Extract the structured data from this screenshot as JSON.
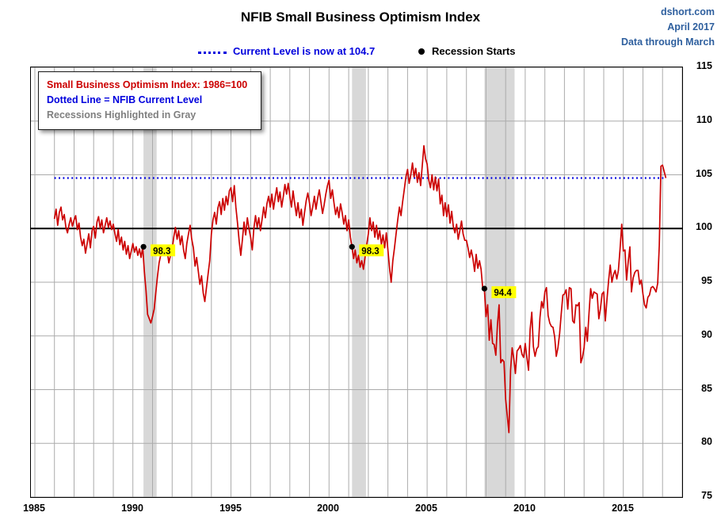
{
  "header": {
    "title": "NFIB Small Business Optimism Index",
    "source": "dshort.com",
    "date": "April 2017",
    "through": "Data through March"
  },
  "annotations": {
    "current_level_label": "Current Level is now at 104.7",
    "recession_starts_label": "Recession Starts"
  },
  "legend": {
    "line1": "Small Business Optimism Index: 1986=100",
    "line2": "Dotted Line = NFIB Current Level",
    "line3": "Recessions Highlighted in Gray"
  },
  "colors": {
    "series_red": "#cc0000",
    "current_level_blue": "#0000dd",
    "recession_band": "#d8d8d8",
    "grid": "#ababab",
    "baseline": "#000000",
    "marker": "#000000",
    "highlight_yellow": "#ffff00",
    "header_blue": "#2e5f9e",
    "legend_gray": "#7f7f7f"
  },
  "chart_data": {
    "type": "line",
    "title": "NFIB Small Business Optimism Index",
    "xlabel": "",
    "ylabel": "",
    "xlim": [
      1984.8,
      2018.0
    ],
    "ylim": [
      75,
      115
    ],
    "yticks": [
      75,
      80,
      85,
      90,
      95,
      100,
      105,
      110,
      115
    ],
    "xticks": [
      1985,
      1990,
      1995,
      2000,
      2005,
      2010,
      2015
    ],
    "gridline_interval_years": 1,
    "baseline": 100,
    "current_level": 104.7,
    "recessions": [
      [
        1990.54,
        1991.21
      ],
      [
        2001.17,
        2001.88
      ],
      [
        2007.92,
        2009.46
      ]
    ],
    "recession_starts": [
      {
        "x": 1990.54,
        "y": 98.3,
        "label": "98.3"
      },
      {
        "x": 2001.17,
        "y": 98.3,
        "label": "98.3"
      },
      {
        "x": 2007.92,
        "y": 94.4,
        "label": "94.4"
      }
    ],
    "x_start": 1986.0,
    "points_per_year": 12,
    "series": [
      {
        "name": "Small Business Optimism Index (1986=100), monthly, Jan 1986 - Mar 2017 (values estimated from chart)",
        "monthly_values": [
          100.9,
          101.8,
          100.3,
          101.5,
          102.0,
          100.8,
          101.3,
          100.1,
          99.6,
          100.4,
          101.0,
          100.2,
          100.8,
          101.2,
          99.9,
          100.5,
          99.2,
          98.4,
          99.0,
          97.7,
          98.6,
          99.5,
          98.2,
          99.8,
          100.2,
          99.1,
          100.6,
          101.1,
          100.0,
          100.8,
          99.6,
          100.3,
          101.0,
          100.1,
          100.7,
          99.9,
          100.4,
          99.5,
          98.8,
          99.9,
          98.5,
          99.2,
          98.0,
          98.8,
          97.6,
          98.4,
          97.2,
          97.9,
          98.6,
          97.8,
          98.3,
          97.5,
          98.1,
          97.3,
          98.3,
          96.0,
          94.2,
          92.0,
          91.6,
          91.2,
          91.8,
          92.5,
          94.0,
          95.5,
          96.8,
          97.5,
          98.2,
          97.6,
          98.4,
          97.9,
          96.8,
          97.5,
          98.0,
          99.2,
          100.1,
          99.0,
          99.8,
          98.5,
          99.3,
          98.0,
          97.2,
          98.6,
          99.5,
          100.3,
          99.0,
          98.2,
          96.5,
          97.3,
          96.0,
          94.8,
          95.6,
          94.0,
          93.2,
          94.5,
          95.8,
          97.0,
          99.5,
          100.8,
          101.5,
          100.4,
          101.9,
          102.5,
          101.3,
          102.8,
          101.7,
          103.0,
          102.2,
          103.5,
          103.8,
          102.5,
          104.0,
          102.0,
          100.5,
          98.8,
          97.5,
          99.0,
          100.6,
          99.4,
          101.0,
          100.0,
          99.2,
          98.0,
          100.0,
          101.2,
          100.1,
          101.0,
          99.8,
          100.8,
          102.0,
          101.0,
          102.3,
          103.0,
          102.0,
          103.2,
          101.8,
          102.9,
          103.8,
          102.5,
          103.4,
          102.0,
          103.0,
          104.1,
          103.2,
          104.2,
          103.0,
          102.0,
          103.5,
          102.3,
          101.2,
          102.4,
          101.0,
          101.8,
          100.3,
          101.5,
          102.6,
          103.3,
          102.4,
          101.2,
          102.0,
          103.0,
          101.8,
          102.8,
          103.6,
          102.5,
          101.4,
          102.2,
          103.2,
          104.0,
          104.5,
          102.8,
          103.6,
          102.4,
          101.3,
          102.0,
          101.0,
          102.3,
          101.5,
          100.4,
          101.2,
          99.8,
          100.8,
          99.2,
          98.3,
          97.2,
          98.0,
          96.8,
          97.5,
          96.4,
          97.0,
          96.2,
          97.3,
          98.5,
          99.5,
          101.0,
          99.8,
          100.6,
          99.2,
          100.3,
          99.0,
          99.8,
          98.5,
          99.4,
          98.2,
          99.6,
          98.0,
          96.3,
          95.0,
          97.0,
          98.2,
          99.5,
          100.8,
          102.0,
          101.2,
          102.5,
          103.6,
          104.8,
          105.5,
          104.2,
          105.0,
          106.1,
          104.8,
          105.6,
          104.3,
          105.2,
          104.0,
          105.8,
          107.7,
          106.5,
          106.0,
          104.5,
          103.8,
          105.0,
          103.6,
          104.8,
          103.5,
          104.6,
          102.3,
          103.1,
          101.2,
          102.4,
          101.1,
          102.2,
          100.5,
          101.6,
          100.2,
          99.6,
          100.4,
          99.0,
          99.8,
          100.7,
          99.5,
          98.9,
          98.9,
          98.2,
          97.3,
          98.0,
          97.2,
          96.0,
          97.6,
          96.3,
          97.0,
          96.2,
          94.4,
          94.4,
          91.8,
          92.9,
          89.6,
          91.5,
          89.3,
          89.2,
          88.2,
          91.1,
          92.9,
          87.5,
          87.8,
          87.6,
          84.1,
          82.6,
          81.0,
          86.8,
          88.9,
          87.9,
          86.5,
          88.6,
          88.8,
          89.1,
          88.3,
          88.0,
          89.3,
          88.0,
          86.8,
          90.6,
          92.2,
          89.0,
          88.1,
          88.8,
          89.0,
          91.7,
          93.2,
          92.6,
          94.1,
          94.5,
          91.9,
          91.2,
          90.9,
          90.8,
          89.9,
          88.1,
          88.9,
          90.2,
          92.0,
          93.8,
          93.9,
          94.3,
          92.5,
          94.5,
          94.4,
          91.4,
          91.2,
          92.9,
          92.8,
          93.1,
          87.5,
          88.0,
          88.9,
          90.8,
          89.5,
          92.1,
          94.4,
          93.5,
          94.1,
          94.0,
          93.9,
          91.6,
          92.5,
          93.9,
          94.1,
          91.4,
          93.4,
          95.2,
          96.6,
          95.0,
          95.7,
          96.1,
          95.3,
          96.1,
          98.1,
          100.4,
          97.9,
          98.0,
          95.2,
          96.9,
          98.3,
          94.1,
          95.4,
          95.9,
          96.1,
          96.1,
          94.8,
          95.2,
          93.9,
          92.9,
          92.6,
          93.6,
          93.8,
          94.5,
          94.6,
          94.4,
          94.1,
          94.9,
          98.4,
          105.8,
          105.9,
          105.3,
          104.7
        ]
      }
    ]
  }
}
